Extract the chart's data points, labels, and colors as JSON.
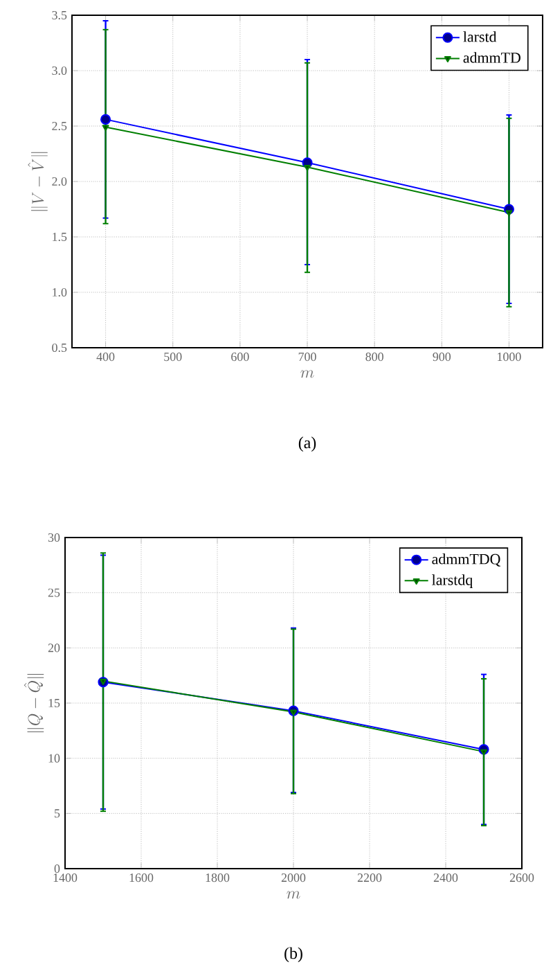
{
  "chart_data": [
    {
      "type": "line",
      "x": [
        400,
        700,
        1000
      ],
      "xlim": [
        350,
        1050
      ],
      "xticks": [
        400,
        500,
        600,
        700,
        800,
        900,
        1000
      ],
      "ylim": [
        0.5,
        3.5
      ],
      "yticks": [
        0.5,
        {
          "value": 1,
          "label": "1.0"
        },
        1.5,
        {
          "value": 2,
          "label": "2.0"
        },
        2.5,
        {
          "value": 3,
          "label": "3.0"
        },
        3.5
      ],
      "xlabel": "m",
      "ylabel": "\\|V-\\hat{V}\\|",
      "grid": true,
      "legend": "top right",
      "annotations": [
        "(a)"
      ],
      "series": [
        {
          "name": "larstd",
          "color": "#0000ff",
          "marker": "circle",
          "values": [
            2.56,
            2.17,
            1.75
          ],
          "errors": [
            [
              1.67,
              3.45
            ],
            [
              1.25,
              3.1
            ],
            [
              0.9,
              2.6
            ]
          ]
        },
        {
          "name": "admmTD",
          "color": "#007f00",
          "marker": "triangle",
          "values": [
            2.49,
            2.13,
            1.72
          ],
          "errors": [
            [
              1.62,
              3.37
            ],
            [
              1.18,
              3.07
            ],
            [
              0.87,
              2.57
            ]
          ]
        }
      ]
    },
    {
      "type": "line",
      "x": [
        1500,
        2000,
        2500
      ],
      "xlim": [
        1400,
        2600
      ],
      "xticks": [
        1400,
        1600,
        1800,
        2000,
        2200,
        2400,
        2600
      ],
      "ylim": [
        0,
        30
      ],
      "yticks": [
        0,
        5,
        10,
        15,
        20,
        25,
        30
      ],
      "xlabel": "m",
      "ylabel": "\\|Q-\\hat{Q}\\|",
      "grid": true,
      "legend": "top right",
      "annotations": [
        "(b)"
      ],
      "series": [
        {
          "name": "admmTDQ",
          "color": "#0000ff",
          "marker": "circle",
          "values": [
            16.9,
            14.3,
            10.8
          ],
          "errors": [
            [
              5.4,
              28.4
            ],
            [
              6.9,
              21.8
            ],
            [
              4.0,
              17.6
            ]
          ]
        },
        {
          "name": "larstdq",
          "color": "#007f00",
          "marker": "triangle",
          "values": [
            17.0,
            14.2,
            10.6
          ],
          "errors": [
            [
              5.2,
              28.6
            ],
            [
              6.8,
              21.7
            ],
            [
              3.9,
              17.2
            ]
          ]
        }
      ]
    }
  ]
}
